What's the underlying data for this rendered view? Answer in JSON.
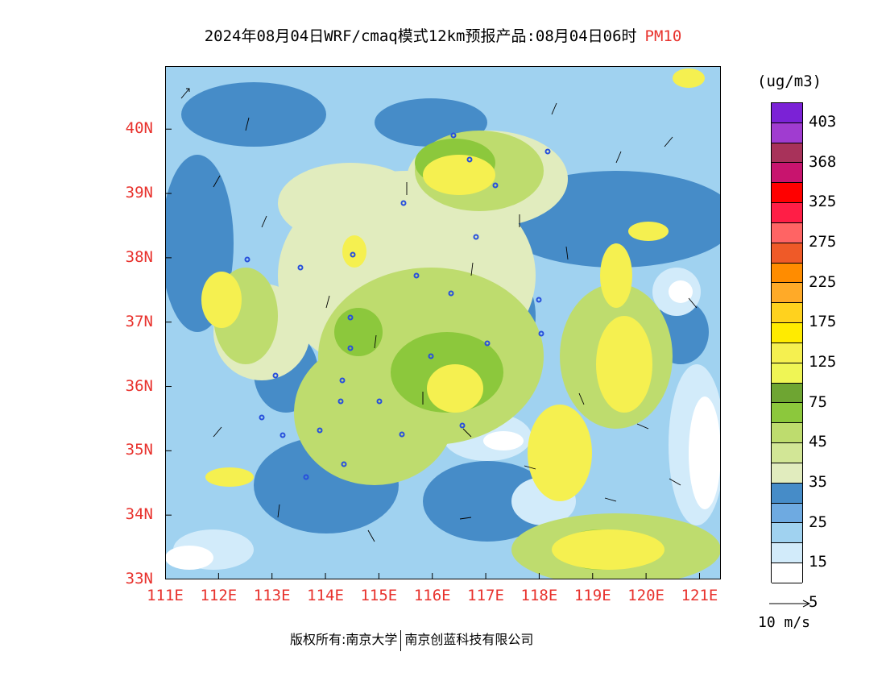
{
  "header": {
    "title": "2024年08月04日WRF/cmaq模式12km预报产品:08月04日06时",
    "pollutant": "PM10"
  },
  "axes": {
    "lat_labels": [
      "40N",
      "39N",
      "38N",
      "37N",
      "36N",
      "35N",
      "34N",
      "33N"
    ],
    "lon_labels": [
      "111E",
      "112E",
      "113E",
      "114E",
      "115E",
      "116E",
      "117E",
      "118E",
      "119E",
      "120E",
      "121E"
    ],
    "lat_range": [
      33,
      40.98
    ],
    "lon_range": [
      111,
      121.4
    ]
  },
  "legend": {
    "unit": "(ug/m3)",
    "labels": [
      "403",
      "368",
      "325",
      "275",
      "225",
      "175",
      "125",
      "75",
      "45",
      "35",
      "25",
      "15",
      "5"
    ],
    "colors": [
      "#7b22d6",
      "#a03cd0",
      "#a8325a",
      "#c8146e",
      "#ff0000",
      "#ff1e46",
      "#ff6464",
      "#ef5a28",
      "#ff8c00",
      "#ffaa28",
      "#ffd21e",
      "#ffeb00",
      "#f5f050",
      "#eff555",
      "#6ea532",
      "#8cc83c",
      "#bedc6e",
      "#d2e696",
      "#e1ecbe",
      "#468cc8",
      "#6eaae1",
      "#a0d2f0",
      "#d2ebfa",
      "#ffffff"
    ],
    "tick_every": 2
  },
  "wind_key": {
    "label": "10 m/s"
  },
  "footer": {
    "copyright": "版权所有:南京大学",
    "company": "南京创蓝科技有限公司"
  },
  "colors": {
    "accent_red": "#e8322d",
    "city_marker": "#2850dc"
  }
}
